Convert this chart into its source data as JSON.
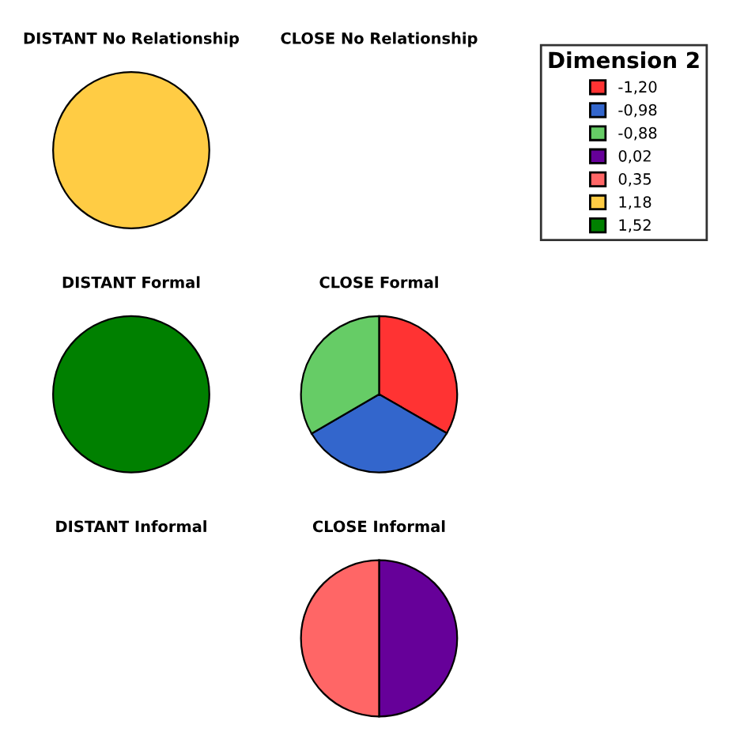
{
  "chart_data": [
    {
      "type": "pie",
      "title": "DISTANT No Relationship",
      "legend_title": "Dimension 2",
      "categories": [
        "1,18"
      ],
      "values": [
        100
      ],
      "colors": [
        "#ffcc44"
      ],
      "legend": "right"
    },
    {
      "type": "other",
      "title": "CLOSE No Relationship"
    },
    {
      "type": "pie",
      "title": "DISTANT Formal",
      "categories": [
        "1,52"
      ],
      "values": [
        100
      ],
      "colors": [
        "#008000"
      ],
      "legend": "top right"
    },
    {
      "type": "pie",
      "title": "CLOSE Formal",
      "categories": [
        "-1,20",
        "-0,98",
        "-0,88"
      ],
      "values": [
        33.3,
        33.3,
        33.4
      ],
      "colors": [
        "#ff3333",
        "#3366cc",
        "#66cc66"
      ],
      "legend": "top right"
    },
    {
      "type": "other",
      "title": "DISTANT Informal"
    },
    {
      "type": "pie",
      "title": "CLOSE Informal",
      "categories": [
        "0,02",
        "0,35"
      ],
      "values": [
        50,
        50
      ],
      "colors": [
        "#660099",
        "#ff6666"
      ],
      "legend": "top right"
    }
  ]
}
